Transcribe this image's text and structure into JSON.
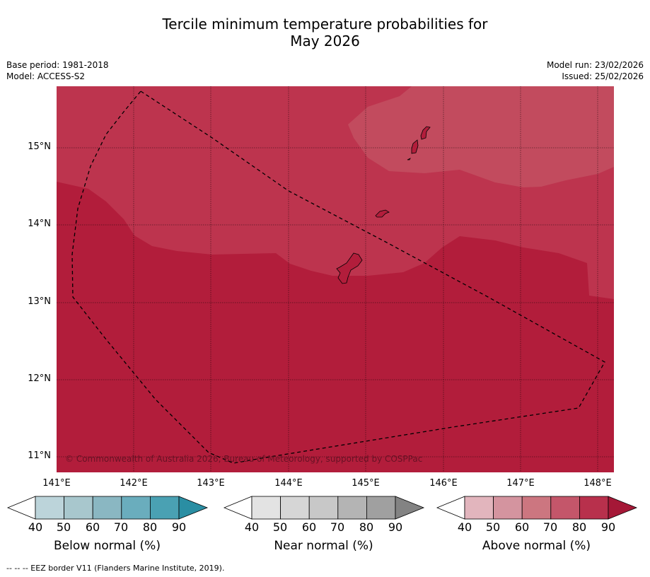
{
  "title_line1": "Tercile minimum temperature probabilities for",
  "title_line2": "May 2026",
  "base_period": "Base period: 1981-2018",
  "model": "Model: ACCESS-S2",
  "model_run": "Model run: 23/02/2026",
  "issued": "Issued: 25/02/2026",
  "lat_labels": [
    "15°N",
    "14°N",
    "13°N",
    "12°N",
    "11°N"
  ],
  "lon_labels": [
    "141°E",
    "142°E",
    "143°E",
    "144°E",
    "145°E",
    "146°E",
    "147°E",
    "148°E"
  ],
  "copyright": "© Commonwealth of Australia 2026, Bureau of Meteorology, supported by COSPPac",
  "colorbars": [
    {
      "label": "Below normal (%)",
      "ticks": [
        "40",
        "50",
        "60",
        "70",
        "80",
        "90"
      ],
      "colors": [
        "#ffffff",
        "#bcd4da",
        "#a8c7cd",
        "#8ab7c2",
        "#6aadbd",
        "#4aa1b3",
        "#2a8ea3"
      ]
    },
    {
      "label": "Near normal (%)",
      "ticks": [
        "40",
        "50",
        "60",
        "70",
        "80",
        "90"
      ],
      "colors": [
        "#ffffff",
        "#e3e3e3",
        "#d6d6d6",
        "#c8c8c8",
        "#b4b4b4",
        "#a0a0a0",
        "#838383"
      ]
    },
    {
      "label": "Above normal (%)",
      "ticks": [
        "40",
        "50",
        "60",
        "70",
        "80",
        "90"
      ],
      "colors": [
        "#ffffff",
        "#e2b5bd",
        "#d4949f",
        "#cc7680",
        "#c4566a",
        "#b8304c",
        "#a51837"
      ]
    }
  ],
  "footer": "--  --  -- EEZ border V11 (Flanders Marine Institute, 2019).",
  "map_colors": {
    "high": "#b21d3b",
    "mid": "#bd344e",
    "low": "#c24b5e"
  }
}
